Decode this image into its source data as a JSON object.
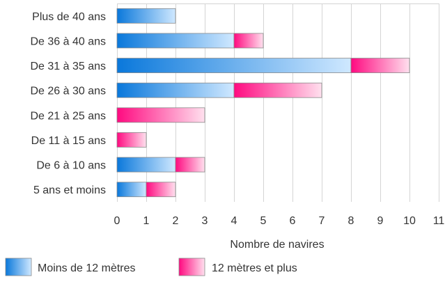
{
  "chart_data": {
    "type": "bar",
    "orientation": "horizontal",
    "stacked": true,
    "categories": [
      "Plus de 40 ans",
      "De 36 à 40 ans",
      "De 31 à 35 ans",
      "De 26 à 30 ans",
      "De 21 à 25 ans",
      "De 11 à 15 ans",
      "De 6 à 10 ans",
      "5 ans et moins"
    ],
    "series": [
      {
        "name": "Moins de 12 mètres",
        "values": [
          2,
          4,
          8,
          4,
          0,
          0,
          2,
          1
        ],
        "color": "#1a86e0"
      },
      {
        "name": "12 mètres et plus",
        "values": [
          0,
          1,
          2,
          3,
          3,
          1,
          1,
          1
        ],
        "color": "#ff1f8a"
      }
    ],
    "xlabel": "Nombre de navires",
    "ylabel": "",
    "title": "",
    "xlim": [
      0,
      11
    ],
    "xticks": [
      "0",
      "1",
      "2",
      "3",
      "4",
      "5",
      "6",
      "7",
      "8",
      "9",
      "10",
      "11"
    ],
    "grid": true,
    "legend_position": "bottom"
  }
}
